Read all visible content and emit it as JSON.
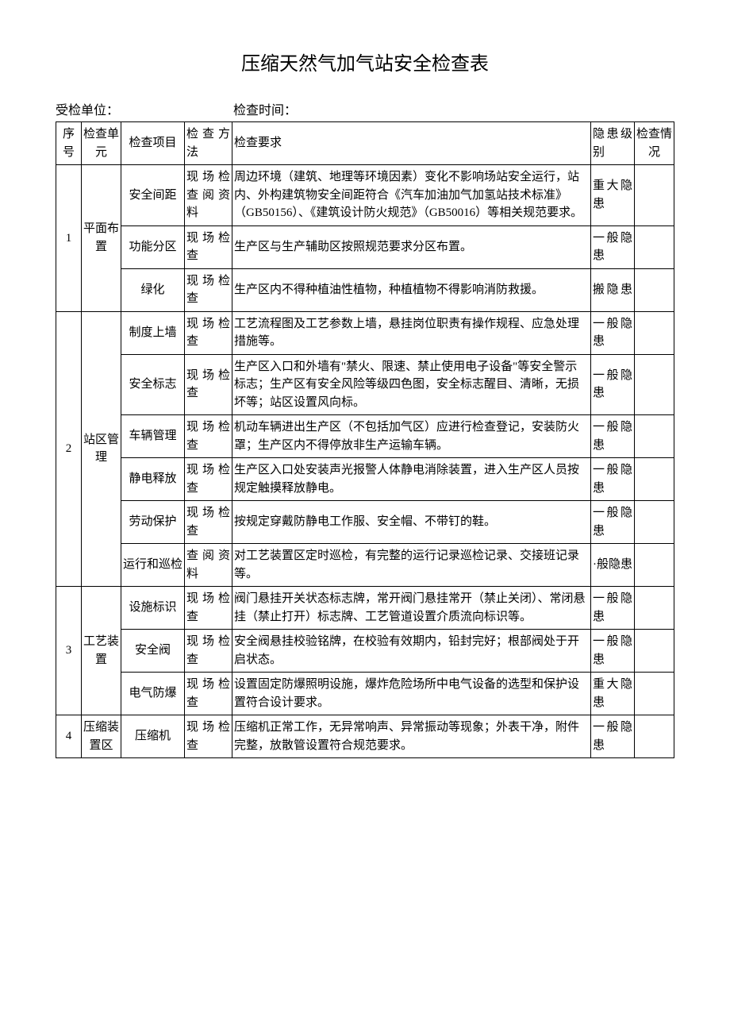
{
  "title": "压缩天然气加气站安全检查表",
  "meta": {
    "unit_label": "受检单位：",
    "time_label": "检查时间："
  },
  "header": {
    "seq": "序号",
    "unit": "检查单元",
    "item": "检查项目",
    "method": "检查方法",
    "req": "检查要求",
    "level": "隐患级别",
    "status": "检查情况"
  },
  "rows": [
    {
      "seq": "1",
      "unit": "平面布置",
      "items": [
        {
          "item": "安全间距",
          "method": "现场检查阅资料",
          "req": "周边环境（建筑、地理等环境因素）变化不影响场站安全运行，站内、外构建筑物安全间距符合《汽车加油加气加氢站技术标准》（GB50156）、《建筑设计防火规范》（GB50016）等相关规范要求。",
          "level": "重大隐患",
          "status": ""
        },
        {
          "item": "功能分区",
          "method": "现场检查",
          "req": "生产区与生产辅助区按照规范要求分区布置。",
          "level": "一般隐患",
          "status": ""
        },
        {
          "item": "绿化",
          "method": "现场检查",
          "req": "生产区内不得种植油性植物，种植植物不得影响消防救援。",
          "level": "搬隐患",
          "status": ""
        }
      ]
    },
    {
      "seq": "2",
      "unit": "站区管理",
      "items": [
        {
          "item": "制度上墙",
          "method": "现场检查",
          "req": "工艺流程图及工艺参数上墙，悬挂岗位职责有操作规程、应急处理措施等。",
          "level": "一般隐患",
          "status": ""
        },
        {
          "item": "安全标志",
          "method": "现场检查",
          "req": "生产区入口和外墙有\"禁火、限速、禁止使用电子设备\"等安全警示标志；生产区有安全风险等级四色图，安全标志醒目、清晰，无损坏等；站区设置风向标。",
          "level": "一般隐患",
          "status": ""
        },
        {
          "item": "车辆管理",
          "method": "现场检查",
          "req": "机动车辆进出生产区（不包括加气区）应进行检查登记，安装防火罩；生产区内不得停放非生产运输车辆。",
          "level": "一般隐患",
          "status": ""
        },
        {
          "item": "静电释放",
          "method": "现场检查",
          "req": "生产区入口处安装声光报警人体静电消除装置，进入生产区人员按规定触摸释放静电。",
          "level": "一般隐患",
          "status": ""
        },
        {
          "item": "劳动保护",
          "method": "现场检查",
          "req": "按规定穿戴防静电工作服、安全帽、不带钉的鞋。",
          "level": "一般隐患",
          "status": ""
        },
        {
          "item": "运行和巡检",
          "method": "查阅资料",
          "req": "对工艺装置区定时巡检，有完整的运行记录巡检记录、交接班记录等。",
          "level": "·般隐患",
          "status": ""
        }
      ]
    },
    {
      "seq": "3",
      "unit": "工艺装置",
      "items": [
        {
          "item": "设施标识",
          "method": "现场检查",
          "req": "阀门悬挂开关状态标志牌，常开阀门悬挂常开（禁止关闭）、常闭悬挂（禁止打开）标志牌、工艺管道设置介质流向标识等。",
          "level": "一般隐患",
          "status": ""
        },
        {
          "item": "安全阀",
          "method": "现场检查",
          "req": "安全阀悬挂校验铭牌，在校验有效期内，铅封完好；根部阀处于开启状态。",
          "level": "一般隐患",
          "status": ""
        },
        {
          "item": "电气防爆",
          "method": "现场检查",
          "req": "设置固定防爆照明设施，爆炸危险场所中电气设备的选型和保护设置符合设计要求。",
          "level": "重大隐患",
          "status": ""
        }
      ]
    },
    {
      "seq": "4",
      "unit": "压缩装置区",
      "items": [
        {
          "item": "压缩机",
          "method": "现场检查",
          "req": "压缩机正常工作，无异常响声、异常振动等现象；外表干净，附件完整，放散管设置符合规范要求。",
          "level": "一般隐患",
          "status": ""
        }
      ]
    }
  ]
}
